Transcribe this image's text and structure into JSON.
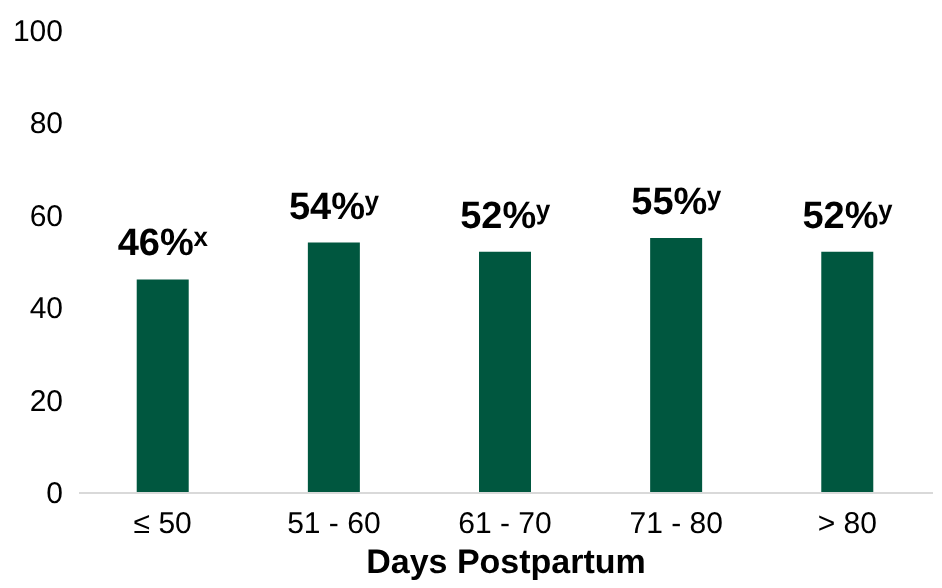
{
  "chart_data": {
    "type": "bar",
    "xlabel": "Days Postpartum",
    "categories": [
      "≤ 50",
      "51 - 60",
      "61 - 70",
      "71 - 80",
      "> 80"
    ],
    "values": [
      46,
      54,
      52,
      55,
      52
    ],
    "value_labels": [
      "46%ˣ",
      "54%ʸ",
      "52%ʸ",
      "55%ʸ",
      "52%ʸ"
    ],
    "color": "#00573f",
    "ylim": [
      0,
      100
    ],
    "yticks": [
      0,
      20,
      40,
      60,
      80,
      100
    ],
    "grid": false
  }
}
